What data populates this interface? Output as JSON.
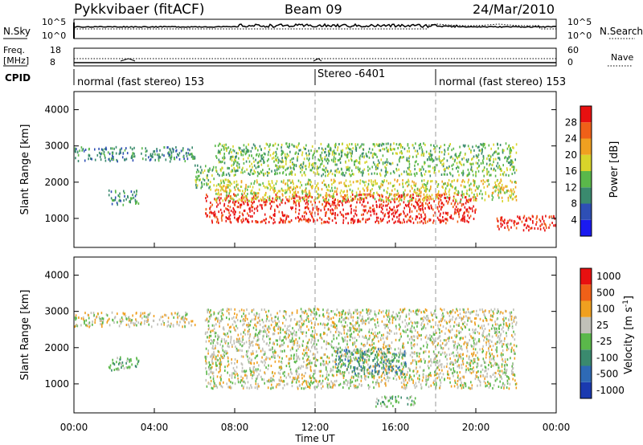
{
  "header": {
    "station": "Pykkvibaer (fitACF)",
    "beam": "Beam 09",
    "date": "24/Mar/2010"
  },
  "nsky_panel": {
    "left_label": "N.Sky",
    "right_label": "N.Search",
    "left_ticks": [
      "10^5",
      "10^0"
    ],
    "right_ticks": [
      "10^5",
      "10^0"
    ]
  },
  "freq_panel": {
    "left_label_top": "Freq.",
    "left_label_bottom": "[MHz]",
    "right_label": "Nave",
    "left_ticks": [
      "18",
      "8"
    ],
    "right_ticks": [
      "60",
      "0"
    ]
  },
  "cpid_panel": {
    "label": "CPID",
    "segments": [
      {
        "label": "normal (fast stereo) 153",
        "start_hour": 0,
        "end_hour": 12
      },
      {
        "label": "Stereo -6401",
        "start_hour": 12,
        "end_hour": 18
      },
      {
        "label": "normal (fast stereo) 153",
        "start_hour": 18,
        "end_hour": 24
      }
    ]
  },
  "chart_data": [
    {
      "type": "heatmap",
      "name": "power-panel",
      "ylabel": "Slant Range [km]",
      "xlim": [
        0,
        24
      ],
      "ylim": [
        200,
        4500
      ],
      "yticks": [
        "1000",
        "2000",
        "3000",
        "4000"
      ],
      "colorbar_label": "Power [dB]",
      "colorbar_ticks": [
        "4",
        "8",
        "12",
        "16",
        "20",
        "24",
        "28"
      ],
      "colors": [
        "#1a1af0",
        "#2e4fb5",
        "#3a8a6e",
        "#5ab84a",
        "#d8d42a",
        "#f0a020",
        "#f06018",
        "#e81010"
      ],
      "scatter_bands": [
        {
          "hours": [
            0,
            6
          ],
          "range_km": [
            2600,
            3000
          ],
          "level": 2
        },
        {
          "hours": [
            1.7,
            3.2
          ],
          "range_km": [
            1400,
            1800
          ],
          "level": 2
        },
        {
          "hours": [
            6,
            7
          ],
          "range_km": [
            1800,
            2500
          ],
          "level": 3
        },
        {
          "hours": [
            6.5,
            20
          ],
          "range_km": [
            900,
            1700
          ],
          "level": 7
        },
        {
          "hours": [
            7,
            22
          ],
          "range_km": [
            1500,
            2100
          ],
          "level": 4
        },
        {
          "hours": [
            7,
            22
          ],
          "range_km": [
            2200,
            3100
          ],
          "level": 3
        },
        {
          "hours": [
            21,
            24
          ],
          "range_km": [
            700,
            1100
          ],
          "level": 7
        }
      ]
    },
    {
      "type": "heatmap",
      "name": "velocity-panel",
      "ylabel": "Slant Range [km]",
      "xlim": [
        0,
        24
      ],
      "ylim": [
        200,
        4500
      ],
      "yticks": [
        "1000",
        "2000",
        "3000",
        "4000"
      ],
      "xticks": [
        "00:00",
        "04:00",
        "08:00",
        "12:00",
        "16:00",
        "20:00",
        "00:00"
      ],
      "xlabel": "Time UT",
      "colorbar_label": "Velocity [m s",
      "colorbar_label_sup": "-1",
      "colorbar_label_end": "]",
      "colorbar_ticks": [
        "1000",
        "500",
        "100",
        "25",
        "-25",
        "-100",
        "-500",
        "-1000"
      ],
      "colors": [
        "#1a3ab0",
        "#2e6ab5",
        "#3a8a6e",
        "#5ab84a",
        "#c0c0b8",
        "#f0a020",
        "#f06018",
        "#e81010"
      ],
      "scatter_bands": [
        {
          "hours": [
            0,
            6
          ],
          "range_km": [
            2600,
            3000
          ],
          "level": 4
        },
        {
          "hours": [
            1.7,
            3.2
          ],
          "range_km": [
            1400,
            1800
          ],
          "level": 3
        },
        {
          "hours": [
            6.5,
            22
          ],
          "range_km": [
            900,
            3100
          ],
          "level": 4
        },
        {
          "hours": [
            13,
            16.5
          ],
          "range_km": [
            1300,
            2000
          ],
          "level": 2
        },
        {
          "hours": [
            15,
            17
          ],
          "range_km": [
            400,
            700
          ],
          "level": 3
        }
      ]
    }
  ]
}
